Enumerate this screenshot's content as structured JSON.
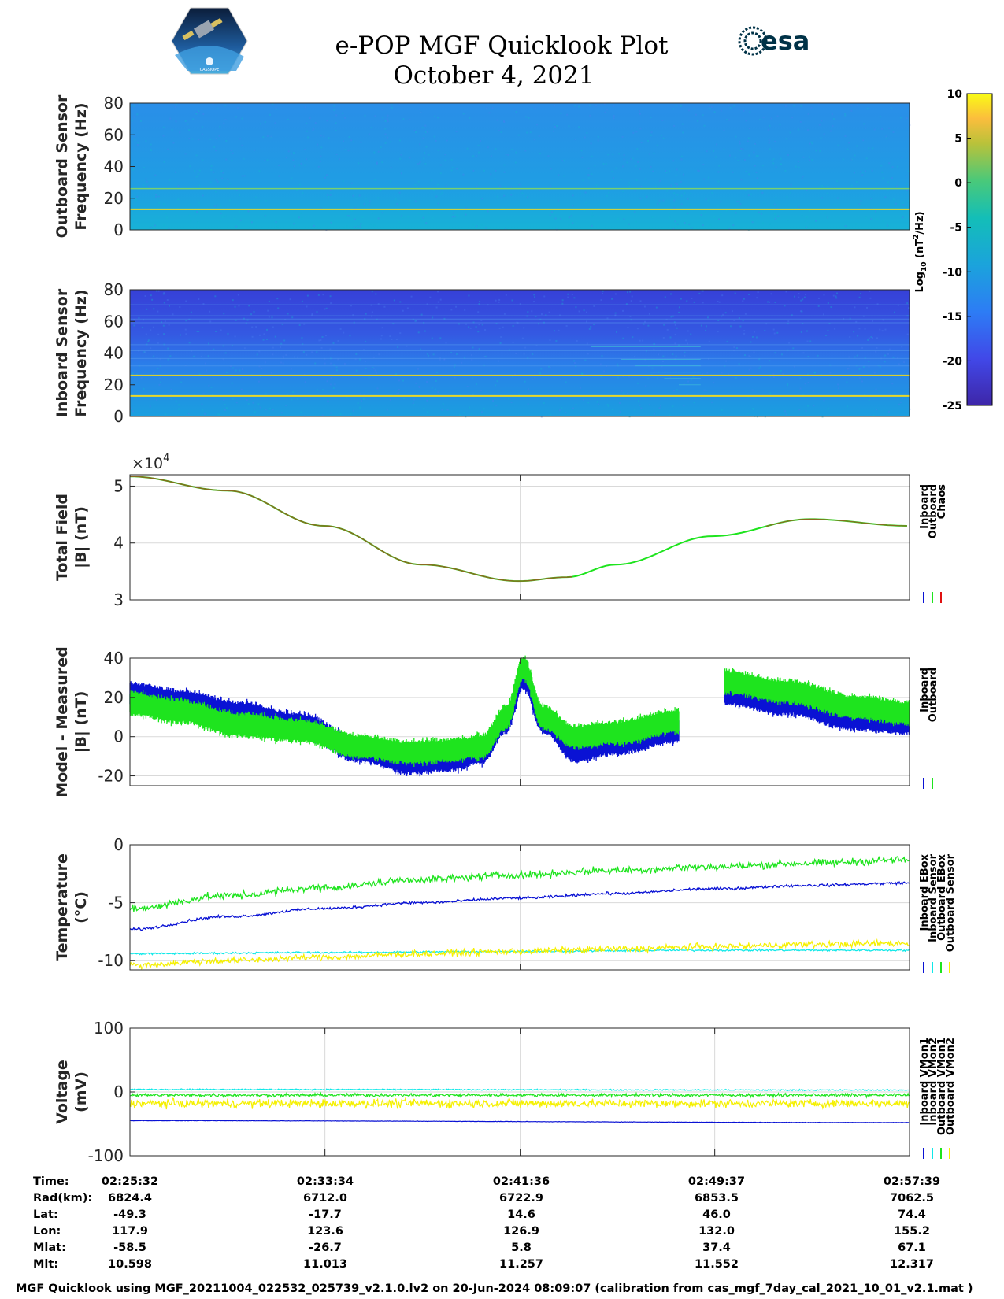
{
  "header": {
    "title": "e-POP MGF Quicklook Plot",
    "date": "October 4, 2021",
    "esa_logo_text": "esa",
    "cassiope_logo_text": "CASSIOPE"
  },
  "colors": {
    "inboard": "#0a12d4",
    "outboard": "#1ee41e",
    "chaos": "#e01010",
    "cyan": "#10e8e8",
    "yellow": "#f5f000",
    "spec_low": "#3a2fc8",
    "spec_mid": "#1ea0e8",
    "spec_high": "#fbe82a",
    "grid": "#d9d9d9"
  },
  "colorbar": {
    "ticks": [
      "10",
      "5",
      "0",
      "-5",
      "-10",
      "-15",
      "-20",
      "-25"
    ],
    "label": "Log",
    "label_sub": "10",
    "label_unit": "(nT",
    "label_sup": "2",
    "label_end": "/Hz)",
    "range": [
      -25,
      10
    ]
  },
  "chart_data": [
    {
      "type": "heatmap",
      "name": "outboard-spectrogram",
      "ylabel_line1": "Outboard Sensor",
      "ylabel_line2": "Frequency (Hz)",
      "yticks": [
        "80",
        "60",
        "40",
        "20",
        "0"
      ],
      "ylim": [
        0,
        80
      ],
      "lines_hz": [
        13,
        26
      ],
      "background_level": -12
    },
    {
      "type": "heatmap",
      "name": "inboard-spectrogram",
      "ylabel_line1": "Inboard Sensor",
      "ylabel_line2": "Frequency (Hz)",
      "yticks": [
        "80",
        "60",
        "40",
        "20",
        "0"
      ],
      "ylim": [
        0,
        80
      ],
      "lines_hz": [
        13,
        26
      ],
      "background_level": -17
    },
    {
      "type": "line",
      "name": "total-field",
      "ylabel_line1": "Total Field",
      "ylabel_line2": "|B| (nT)",
      "multiplier": "×10",
      "multiplier_exp": "4",
      "yticks": [
        "5",
        "4",
        "3"
      ],
      "ylim": [
        3,
        5.2
      ],
      "legend": [
        "Inboard",
        "Outboard",
        "Chaos"
      ],
      "x_minutes": [
        0,
        4,
        8,
        12,
        16,
        18,
        20,
        24,
        28,
        32.1
      ],
      "values": [
        5.17,
        4.92,
        4.3,
        3.62,
        3.33,
        3.4,
        3.62,
        4.12,
        4.42,
        4.3
      ]
    },
    {
      "type": "line",
      "name": "model-measured",
      "ylabel_line1": "Model - Measured",
      "ylabel_line2": "|B| (nT)",
      "yticks": [
        "40",
        "20",
        "0",
        "-20"
      ],
      "ylim": [
        -25,
        40
      ],
      "legend": [
        "Inboard",
        "Outboard"
      ],
      "series": [
        {
          "name": "Inboard",
          "segments": [
            {
              "x_minutes": [
                0,
                2,
                4.5,
                7,
                9.5,
                11.5,
                13,
                14.5,
                15.5,
                16.2,
                17,
                18.3,
                20,
                22.6
              ],
              "values": [
                22,
                18,
                12,
                6,
                -7,
                -13,
                -12,
                -8,
                8,
                30,
                8,
                -7,
                -3,
                3
              ]
            },
            {
              "x_minutes": [
                24.5,
                27,
                30,
                32.1
              ],
              "values": [
                22,
                17,
                9,
                7
              ]
            }
          ]
        },
        {
          "name": "Outboard",
          "segments": [
            {
              "x_minutes": [
                0,
                2,
                4.5,
                7,
                9.5,
                11.5,
                13,
                14.5,
                15.5,
                16.2,
                17,
                18.3,
                20,
                22.6
              ],
              "values": [
                17,
                13,
                6,
                3,
                -5,
                -8,
                -7,
                -5,
                10,
                35,
                10,
                0,
                2,
                8
              ]
            },
            {
              "x_minutes": [
                24.5,
                27,
                30,
                32.1
              ],
              "values": [
                28,
                23,
                15,
                12
              ]
            }
          ]
        }
      ]
    },
    {
      "type": "line",
      "name": "temperature",
      "ylabel_line1": "Temperature",
      "ylabel_line2": "(°C)",
      "yticks": [
        "0",
        "-5",
        "-10"
      ],
      "ylim": [
        -10.8,
        0
      ],
      "legend": [
        "Inboard EBox",
        "Inboard Sensor",
        "Outboard EBox",
        "Outboard Sensor"
      ],
      "series": [
        {
          "name": "Inboard EBox",
          "x_minutes": [
            0,
            4,
            8,
            12,
            16,
            20,
            24,
            28,
            32.1
          ],
          "values": [
            -5.5,
            -4.4,
            -3.7,
            -3.0,
            -2.6,
            -2.2,
            -1.9,
            -1.6,
            -1.3
          ]
        },
        {
          "name": "Inboard Sensor",
          "x_minutes": [
            0,
            4,
            8,
            12,
            16,
            20,
            24,
            28,
            32.1
          ],
          "values": [
            -7.3,
            -6.2,
            -5.5,
            -5.0,
            -4.6,
            -4.2,
            -3.8,
            -3.5,
            -3.3
          ]
        },
        {
          "name": "Outboard EBox",
          "x_minutes": [
            0,
            8,
            16,
            24,
            32.1
          ],
          "values": [
            -9.4,
            -9.3,
            -9.2,
            -9.1,
            -9.1
          ]
        },
        {
          "name": "Outboard Sensor",
          "x_minutes": [
            0,
            4,
            8,
            12,
            16,
            20,
            24,
            28,
            32.1
          ],
          "values": [
            -10.4,
            -10.0,
            -9.7,
            -9.4,
            -9.2,
            -9.0,
            -8.8,
            -8.6,
            -8.5
          ]
        }
      ]
    },
    {
      "type": "line",
      "name": "voltage",
      "ylabel_line1": "Voltage",
      "ylabel_line2": "(mV)",
      "yticks": [
        "100",
        "0",
        "-100"
      ],
      "ylim": [
        -100,
        100
      ],
      "legend": [
        "Inboard VMon1",
        "Inboard VMon2",
        "Outboard VMon1",
        "Outboard VMon2"
      ],
      "series": [
        {
          "name": "Inboard VMon1",
          "x_minutes": [
            0,
            32.1
          ],
          "values": [
            -45,
            -48
          ]
        },
        {
          "name": "Inboard VMon2",
          "x_minutes": [
            0,
            32.1
          ],
          "values": [
            4,
            3
          ]
        },
        {
          "name": "Outboard VMon1",
          "x_minutes": [
            0,
            32.1
          ],
          "values": [
            -5,
            -5
          ]
        },
        {
          "name": "Outboard VMon2",
          "x_minutes": [
            0,
            32.1
          ],
          "values": [
            -18,
            -18
          ]
        }
      ]
    }
  ],
  "orbit_table": {
    "labels": [
      "Time:",
      "Rad(km):",
      "Lat:",
      "Lon:",
      "Mlat:",
      "Mlt:"
    ],
    "columns": [
      [
        "02:25:32",
        "6824.4",
        "-49.3",
        "117.9",
        "-58.5",
        "10.598"
      ],
      [
        "02:33:34",
        "6712.0",
        "-17.7",
        "123.6",
        "-26.7",
        "11.013"
      ],
      [
        "02:41:36",
        "6722.9",
        "14.6",
        "126.9",
        "5.8",
        "11.257"
      ],
      [
        "02:49:37",
        "6853.5",
        "46.0",
        "132.0",
        "37.4",
        "11.552"
      ],
      [
        "02:57:39",
        "7062.5",
        "74.4",
        "155.2",
        "67.1",
        "12.317"
      ]
    ]
  },
  "footer": "MGF Quicklook using MGF_20211004_022532_025739_v2.1.0.lv2 on 20-Jun-2024 08:09:07 (calibration from cas_mgf_7day_cal_2021_10_01_v2.1.mat )"
}
